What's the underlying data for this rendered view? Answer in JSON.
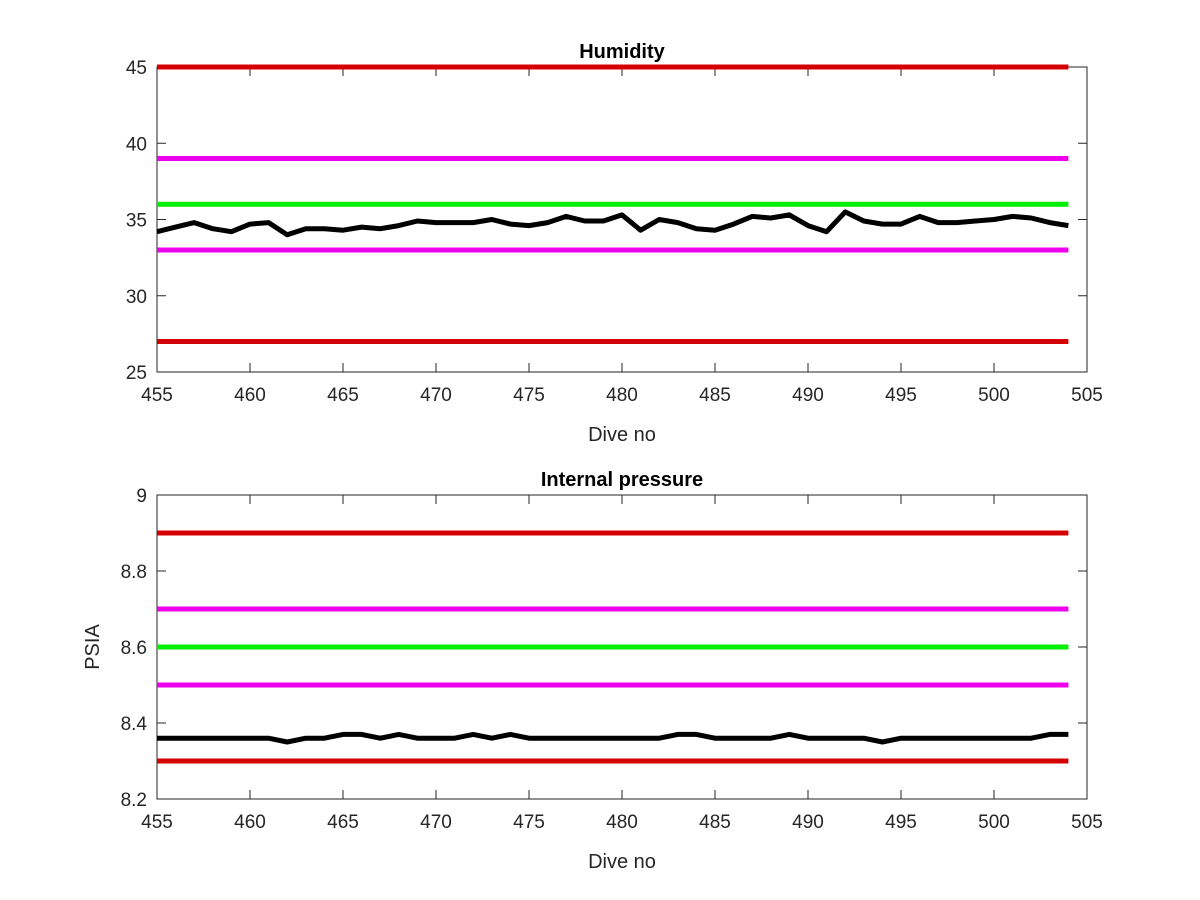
{
  "chart_data": [
    {
      "type": "line",
      "title": "Humidity",
      "xlabel": "Dive no",
      "ylabel": "",
      "xlim": [
        455,
        505
      ],
      "ylim": [
        25,
        45
      ],
      "xticks": [
        "455",
        "460",
        "465",
        "470",
        "475",
        "480",
        "485",
        "490",
        "495",
        "500",
        "505"
      ],
      "yticks": [
        "25",
        "30",
        "35",
        "40",
        "45"
      ],
      "grid": false,
      "reference_lines": [
        {
          "y": 45,
          "x": [
            455,
            504
          ],
          "color": "#d40000"
        },
        {
          "y": 39,
          "x": [
            455,
            504
          ],
          "color": "#ee00ee"
        },
        {
          "y": 36,
          "x": [
            455,
            504
          ],
          "color": "#00ee00"
        },
        {
          "y": 33,
          "x": [
            455,
            504
          ],
          "color": "#ee00ee"
        },
        {
          "y": 27,
          "x": [
            455,
            504
          ],
          "color": "#d40000"
        }
      ],
      "series": [
        {
          "color": "#000000",
          "x": [
            455,
            456,
            457,
            458,
            459,
            460,
            461,
            462,
            463,
            464,
            465,
            466,
            467,
            468,
            469,
            470,
            471,
            472,
            473,
            474,
            475,
            476,
            477,
            478,
            479,
            480,
            481,
            482,
            483,
            484,
            485,
            486,
            487,
            488,
            489,
            490,
            491,
            492,
            493,
            494,
            495,
            496,
            497,
            498,
            499,
            500,
            501,
            502,
            503,
            504
          ],
          "values": [
            34.2,
            34.5,
            34.8,
            34.4,
            34.2,
            34.7,
            34.8,
            34.0,
            34.4,
            34.4,
            34.3,
            34.5,
            34.4,
            34.6,
            34.9,
            34.8,
            34.8,
            34.8,
            35.0,
            34.7,
            34.6,
            34.8,
            35.2,
            34.9,
            34.9,
            35.3,
            34.3,
            35.0,
            34.8,
            34.4,
            34.3,
            34.7,
            35.2,
            35.1,
            35.3,
            34.6,
            34.2,
            35.5,
            34.9,
            34.7,
            34.7,
            35.2,
            34.8,
            34.8,
            34.9,
            35.0,
            35.2,
            35.1,
            34.8,
            34.6
          ]
        }
      ]
    },
    {
      "type": "line",
      "title": "Internal pressure",
      "xlabel": "Dive no",
      "ylabel": "PSIA",
      "xlim": [
        455,
        505
      ],
      "ylim": [
        8.2,
        9
      ],
      "xticks": [
        "455",
        "460",
        "465",
        "470",
        "475",
        "480",
        "485",
        "490",
        "495",
        "500",
        "505"
      ],
      "yticks": [
        "8.2",
        "8.4",
        "8.6",
        "8.8",
        "9"
      ],
      "grid": false,
      "reference_lines": [
        {
          "y": 8.9,
          "x": [
            455,
            504
          ],
          "color": "#d40000"
        },
        {
          "y": 8.7,
          "x": [
            455,
            504
          ],
          "color": "#ee00ee"
        },
        {
          "y": 8.6,
          "x": [
            455,
            504
          ],
          "color": "#00ee00"
        },
        {
          "y": 8.5,
          "x": [
            455,
            504
          ],
          "color": "#ee00ee"
        },
        {
          "y": 8.3,
          "x": [
            455,
            504
          ],
          "color": "#d40000"
        }
      ],
      "series": [
        {
          "color": "#000000",
          "x": [
            455,
            456,
            457,
            458,
            459,
            460,
            461,
            462,
            463,
            464,
            465,
            466,
            467,
            468,
            469,
            470,
            471,
            472,
            473,
            474,
            475,
            476,
            477,
            478,
            479,
            480,
            481,
            482,
            483,
            484,
            485,
            486,
            487,
            488,
            489,
            490,
            491,
            492,
            493,
            494,
            495,
            496,
            497,
            498,
            499,
            500,
            501,
            502,
            503,
            504
          ],
          "values": [
            8.36,
            8.36,
            8.36,
            8.36,
            8.36,
            8.36,
            8.36,
            8.35,
            8.36,
            8.36,
            8.37,
            8.37,
            8.36,
            8.37,
            8.36,
            8.36,
            8.36,
            8.37,
            8.36,
            8.37,
            8.36,
            8.36,
            8.36,
            8.36,
            8.36,
            8.36,
            8.36,
            8.36,
            8.37,
            8.37,
            8.36,
            8.36,
            8.36,
            8.36,
            8.37,
            8.36,
            8.36,
            8.36,
            8.36,
            8.35,
            8.36,
            8.36,
            8.36,
            8.36,
            8.36,
            8.36,
            8.36,
            8.36,
            8.37,
            8.37
          ]
        }
      ]
    }
  ]
}
